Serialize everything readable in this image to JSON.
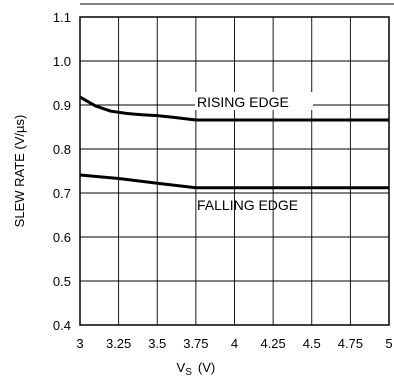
{
  "chart_data": {
    "type": "line",
    "xlabel_main": "V",
    "xlabel_sub": "S",
    "xlabel_unit": "(V)",
    "ylabel": "SLEW RATE (V/µs)",
    "xlim": [
      3,
      5
    ],
    "ylim": [
      0.4,
      1.1
    ],
    "xticks": [
      3,
      3.25,
      3.5,
      3.75,
      4,
      4.25,
      4.5,
      4.75,
      5
    ],
    "xtick_labels": [
      "3",
      "3.25",
      "3.5",
      "3.75",
      "4",
      "4.25",
      "4.5",
      "4.75",
      "5"
    ],
    "yticks": [
      0.4,
      0.5,
      0.6,
      0.7,
      0.8,
      0.9,
      1.0,
      1.1
    ],
    "ytick_labels": [
      "0.4",
      "0.5",
      "0.6",
      "0.7",
      "0.8",
      "0.9",
      "1.0",
      "1.1"
    ],
    "grid": true,
    "series": [
      {
        "name": "RISING EDGE",
        "x": [
          3.0,
          3.1,
          3.2,
          3.3,
          3.4,
          3.5,
          3.6,
          3.75,
          4.0,
          4.5,
          5.0
        ],
        "values": [
          0.918,
          0.898,
          0.886,
          0.881,
          0.878,
          0.876,
          0.872,
          0.866,
          0.866,
          0.866,
          0.866
        ]
      },
      {
        "name": "FALLING EDGE",
        "x": [
          3.0,
          3.25,
          3.5,
          3.75,
          4.0,
          4.5,
          5.0
        ],
        "values": [
          0.741,
          0.733,
          0.722,
          0.712,
          0.712,
          0.712,
          0.712
        ]
      }
    ]
  }
}
